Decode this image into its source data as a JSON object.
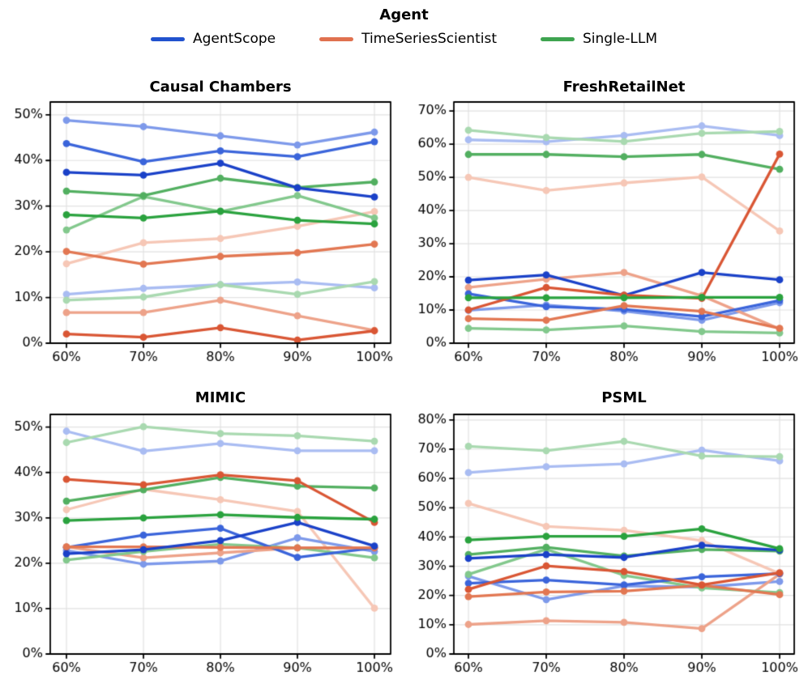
{
  "legend": {
    "title": "Agent",
    "entries": [
      {
        "label": "AgentScope",
        "color": "#2152ce"
      },
      {
        "label": "TimeSeriesScientist",
        "color": "#e0714f"
      },
      {
        "label": "Single-LLM",
        "color": "#3ea450"
      }
    ]
  },
  "palette": {
    "AgentScope": {
      "dark": "#1a41c8",
      "medium": "#3a64da",
      "light": "#7d99ea",
      "pale": "#a9bcf2"
    },
    "TimeSeriesScientist": {
      "dark": "#d95634",
      "medium": "#e27752",
      "light": "#eda289",
      "pale": "#f6c7b6"
    },
    "Single-LLM": {
      "dark": "#2aa23e",
      "medium": "#52af60",
      "light": "#82c88c",
      "pale": "#a9d9b0"
    }
  },
  "chart_data": [
    {
      "type": "line",
      "title": "Causal Chambers",
      "x_tick_labels": [
        "60%",
        "70%",
        "80%",
        "90%",
        "100%"
      ],
      "y_tick_labels": [
        "0%",
        "10%",
        "20%",
        "30%",
        "40%",
        "50%"
      ],
      "ylim": [
        0,
        52.8
      ],
      "grid": true,
      "legend_position": "figure-top",
      "series": [
        {
          "name": "AgentScope-dark",
          "agent": "AgentScope",
          "shade": "dark",
          "values": [
            37.4,
            36.8,
            39.4,
            34.0,
            32.0
          ]
        },
        {
          "name": "AgentScope-medium",
          "agent": "AgentScope",
          "shade": "medium",
          "values": [
            43.7,
            39.7,
            42.1,
            40.8,
            44.1
          ]
        },
        {
          "name": "AgentScope-light",
          "agent": "AgentScope",
          "shade": "light",
          "values": [
            48.8,
            47.4,
            45.4,
            43.4,
            46.2
          ]
        },
        {
          "name": "AgentScope-pale",
          "agent": "AgentScope",
          "shade": "pale",
          "values": [
            10.7,
            12.0,
            12.8,
            13.4,
            12.1
          ]
        },
        {
          "name": "TimeSeriesScientist-dark",
          "agent": "TimeSeriesScientist",
          "shade": "dark",
          "values": [
            2.0,
            1.3,
            3.4,
            0.7,
            2.7
          ]
        },
        {
          "name": "TimeSeriesScientist-medium",
          "agent": "TimeSeriesScientist",
          "shade": "medium",
          "values": [
            20.1,
            17.3,
            19.0,
            19.8,
            21.7
          ]
        },
        {
          "name": "TimeSeriesScientist-light",
          "agent": "TimeSeriesScientist",
          "shade": "light",
          "values": [
            6.7,
            6.7,
            9.4,
            6.0,
            2.8
          ]
        },
        {
          "name": "TimeSeriesScientist-pale",
          "agent": "TimeSeriesScientist",
          "shade": "pale",
          "values": [
            17.4,
            22.0,
            22.9,
            25.6,
            28.8
          ]
        },
        {
          "name": "Single-LLM-dark",
          "agent": "Single-LLM",
          "shade": "dark",
          "values": [
            28.1,
            27.4,
            28.9,
            26.9,
            26.1
          ]
        },
        {
          "name": "Single-LLM-medium",
          "agent": "Single-LLM",
          "shade": "medium",
          "values": [
            33.3,
            32.3,
            36.1,
            34.1,
            35.3
          ]
        },
        {
          "name": "Single-LLM-light",
          "agent": "Single-LLM",
          "shade": "light",
          "values": [
            24.8,
            32.1,
            28.8,
            32.3,
            27.4
          ]
        },
        {
          "name": "Single-LLM-pale",
          "agent": "Single-LLM",
          "shade": "pale",
          "values": [
            9.4,
            10.1,
            12.8,
            10.7,
            13.5
          ]
        }
      ]
    },
    {
      "type": "line",
      "title": "FreshRetailNet",
      "x_tick_labels": [
        "60%",
        "70%",
        "80%",
        "90%",
        "100%"
      ],
      "y_tick_labels": [
        "0%",
        "10%",
        "20%",
        "30%",
        "40%",
        "50%",
        "60%",
        "70%"
      ],
      "ylim": [
        0,
        72.7
      ],
      "grid": true,
      "series": [
        {
          "name": "AgentScope-dark",
          "agent": "AgentScope",
          "shade": "dark",
          "values": [
            19.0,
            20.6,
            14.4,
            21.3,
            19.1
          ]
        },
        {
          "name": "AgentScope-medium",
          "agent": "AgentScope",
          "shade": "medium",
          "values": [
            14.9,
            11.0,
            10.2,
            8.0,
            12.9
          ]
        },
        {
          "name": "AgentScope-light",
          "agent": "AgentScope",
          "shade": "light",
          "values": [
            9.9,
            11.5,
            9.7,
            6.9,
            12.2
          ]
        },
        {
          "name": "AgentScope-pale",
          "agent": "AgentScope",
          "shade": "pale",
          "values": [
            61.3,
            60.7,
            62.6,
            65.5,
            62.6
          ]
        },
        {
          "name": "TimeSeriesScientist-dark",
          "agent": "TimeSeriesScientist",
          "shade": "dark",
          "values": [
            10.0,
            16.8,
            14.5,
            13.5,
            57.0
          ]
        },
        {
          "name": "TimeSeriesScientist-medium",
          "agent": "TimeSeriesScientist",
          "shade": "medium",
          "values": [
            7.4,
            6.9,
            11.3,
            9.6,
            4.5
          ]
        },
        {
          "name": "TimeSeriesScientist-light",
          "agent": "TimeSeriesScientist",
          "shade": "light",
          "values": [
            16.8,
            19.3,
            21.3,
            14.3,
            4.3
          ]
        },
        {
          "name": "TimeSeriesScientist-pale",
          "agent": "TimeSeriesScientist",
          "shade": "pale",
          "values": [
            50.0,
            46.0,
            48.3,
            50.1,
            33.8
          ]
        },
        {
          "name": "Single-LLM-dark",
          "agent": "Single-LLM",
          "shade": "dark",
          "values": [
            13.7,
            13.7,
            13.7,
            13.8,
            13.8
          ]
        },
        {
          "name": "Single-LLM-medium",
          "agent": "Single-LLM",
          "shade": "medium",
          "values": [
            56.9,
            56.9,
            56.2,
            56.9,
            52.4
          ]
        },
        {
          "name": "Single-LLM-light",
          "agent": "Single-LLM",
          "shade": "light",
          "values": [
            4.5,
            4.0,
            5.2,
            3.5,
            3.1
          ]
        },
        {
          "name": "Single-LLM-pale",
          "agent": "Single-LLM",
          "shade": "pale",
          "values": [
            64.2,
            62.0,
            60.8,
            63.3,
            63.8
          ]
        }
      ]
    },
    {
      "type": "line",
      "title": "MIMIC",
      "x_tick_labels": [
        "60%",
        "70%",
        "80%",
        "90%",
        "100%"
      ],
      "y_tick_labels": [
        "0%",
        "10%",
        "20%",
        "30%",
        "40%",
        "50%"
      ],
      "ylim": [
        0,
        52.8
      ],
      "grid": true,
      "series": [
        {
          "name": "AgentScope-dark",
          "agent": "AgentScope",
          "shade": "dark",
          "values": [
            22.1,
            23.0,
            25.0,
            29.0,
            23.8
          ]
        },
        {
          "name": "AgentScope-medium",
          "agent": "AgentScope",
          "shade": "medium",
          "values": [
            23.5,
            26.2,
            27.7,
            21.3,
            23.4
          ]
        },
        {
          "name": "AgentScope-light",
          "agent": "AgentScope",
          "shade": "light",
          "values": [
            22.8,
            19.8,
            20.5,
            25.6,
            22.6
          ]
        },
        {
          "name": "AgentScope-pale",
          "agent": "AgentScope",
          "shade": "pale",
          "values": [
            49.1,
            44.7,
            46.4,
            44.8,
            44.8
          ]
        },
        {
          "name": "TimeSeriesScientist-dark",
          "agent": "TimeSeriesScientist",
          "shade": "dark",
          "values": [
            38.5,
            37.3,
            39.5,
            38.2,
            29.0
          ]
        },
        {
          "name": "TimeSeriesScientist-medium",
          "agent": "TimeSeriesScientist",
          "shade": "medium",
          "values": [
            23.6,
            23.6,
            23.5,
            23.4,
            23.4
          ]
        },
        {
          "name": "TimeSeriesScientist-light",
          "agent": "TimeSeriesScientist",
          "shade": "light",
          "values": [
            23.6,
            21.2,
            22.3,
            23.4,
            23.4
          ]
        },
        {
          "name": "TimeSeriesScientist-pale",
          "agent": "TimeSeriesScientist",
          "shade": "pale",
          "values": [
            31.8,
            36.3,
            34.0,
            31.4,
            10.1
          ]
        },
        {
          "name": "Single-LLM-dark",
          "agent": "Single-LLM",
          "shade": "dark",
          "values": [
            29.4,
            30.0,
            30.7,
            30.1,
            29.7
          ]
        },
        {
          "name": "Single-LLM-medium",
          "agent": "Single-LLM",
          "shade": "medium",
          "values": [
            33.7,
            36.2,
            38.9,
            37.0,
            36.6
          ]
        },
        {
          "name": "Single-LLM-light",
          "agent": "Single-LLM",
          "shade": "light",
          "values": [
            20.7,
            22.6,
            24.2,
            23.4,
            21.2
          ]
        },
        {
          "name": "Single-LLM-pale",
          "agent": "Single-LLM",
          "shade": "pale",
          "values": [
            46.6,
            50.1,
            48.6,
            48.1,
            46.9
          ]
        }
      ]
    },
    {
      "type": "line",
      "title": "PSML",
      "x_tick_labels": [
        "60%",
        "70%",
        "80%",
        "90%",
        "100%"
      ],
      "y_tick_labels": [
        "0%",
        "10%",
        "20%",
        "30%",
        "40%",
        "50%",
        "60%",
        "70%",
        "80%"
      ],
      "ylim": [
        0,
        81.9
      ],
      "grid": true,
      "series": [
        {
          "name": "AgentScope-dark",
          "agent": "AgentScope",
          "shade": "dark",
          "values": [
            32.7,
            34.0,
            33.0,
            37.2,
            35.5
          ]
        },
        {
          "name": "AgentScope-medium",
          "agent": "AgentScope",
          "shade": "medium",
          "values": [
            24.2,
            25.3,
            23.6,
            26.4,
            27.5
          ]
        },
        {
          "name": "AgentScope-light",
          "agent": "AgentScope",
          "shade": "light",
          "values": [
            26.6,
            18.6,
            23.3,
            22.9,
            24.8
          ]
        },
        {
          "name": "AgentScope-pale",
          "agent": "AgentScope",
          "shade": "pale",
          "values": [
            62.0,
            64.0,
            65.0,
            69.7,
            66.0
          ]
        },
        {
          "name": "TimeSeriesScientist-dark",
          "agent": "TimeSeriesScientist",
          "shade": "dark",
          "values": [
            22.1,
            30.1,
            28.2,
            23.6,
            27.8
          ]
        },
        {
          "name": "TimeSeriesScientist-medium",
          "agent": "TimeSeriesScientist",
          "shade": "medium",
          "values": [
            19.6,
            21.2,
            21.5,
            23.5,
            20.3
          ]
        },
        {
          "name": "TimeSeriesScientist-light",
          "agent": "TimeSeriesScientist",
          "shade": "light",
          "values": [
            10.1,
            11.4,
            10.8,
            8.7,
            27.3
          ]
        },
        {
          "name": "TimeSeriesScientist-pale",
          "agent": "TimeSeriesScientist",
          "shade": "pale",
          "values": [
            51.5,
            43.6,
            42.3,
            38.8,
            27.5
          ]
        },
        {
          "name": "Single-LLM-dark",
          "agent": "Single-LLM",
          "shade": "dark",
          "values": [
            39.0,
            40.2,
            40.2,
            42.8,
            36.0
          ]
        },
        {
          "name": "Single-LLM-medium",
          "agent": "Single-LLM",
          "shade": "medium",
          "values": [
            34.0,
            36.5,
            33.5,
            35.7,
            35.2
          ]
        },
        {
          "name": "Single-LLM-light",
          "agent": "Single-LLM",
          "shade": "light",
          "values": [
            27.2,
            35.8,
            26.9,
            22.6,
            21.0
          ]
        },
        {
          "name": "Single-LLM-pale",
          "agent": "Single-LLM",
          "shade": "pale",
          "values": [
            71.0,
            69.5,
            72.7,
            67.7,
            67.5
          ]
        }
      ]
    }
  ]
}
